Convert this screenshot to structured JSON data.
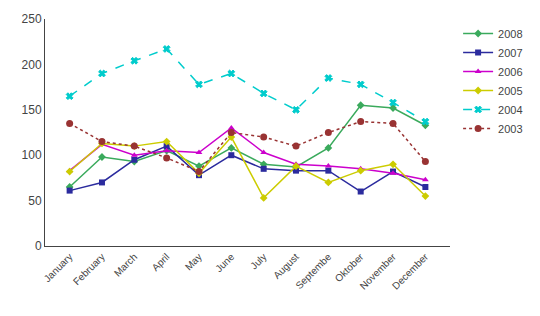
{
  "chart_data": {
    "type": "line",
    "categories": [
      "January",
      "February",
      "March",
      "April",
      "May",
      "June",
      "July",
      "August",
      "Septembe",
      "Oktober",
      "November",
      "December"
    ],
    "series": [
      {
        "name": "2008",
        "color": "#3aaa5c",
        "marker": "diamond",
        "line_style": "solid",
        "values": [
          65,
          98,
          93,
          105,
          88,
          108,
          90,
          87,
          108,
          155,
          152,
          133
        ]
      },
      {
        "name": "2007",
        "color": "#2b2b9e",
        "marker": "square",
        "line_style": "solid",
        "values": [
          61,
          70,
          95,
          110,
          78,
          100,
          85,
          83,
          83,
          60,
          82,
          65
        ]
      },
      {
        "name": "2006",
        "color": "#cc00cc",
        "marker": "triangle",
        "line_style": "solid",
        "values": [
          83,
          112,
          100,
          105,
          103,
          130,
          103,
          90,
          88,
          85,
          80,
          73
        ]
      },
      {
        "name": "2005",
        "color": "#cccc00",
        "marker": "diamond",
        "line_style": "solid",
        "values": [
          82,
          113,
          110,
          115,
          80,
          120,
          53,
          88,
          70,
          83,
          90,
          55
        ]
      },
      {
        "name": "2004",
        "color": "#00cccc",
        "marker": "x",
        "line_style": "dashed",
        "values": [
          165,
          190,
          204,
          217,
          178,
          190,
          168,
          150,
          185,
          178,
          158,
          137
        ]
      },
      {
        "name": "2003",
        "color": "#993333",
        "marker": "circle",
        "line_style": "dotted",
        "values": [
          135,
          115,
          110,
          97,
          82,
          125,
          120,
          110,
          125,
          137,
          135,
          93
        ]
      }
    ],
    "ylim": [
      0,
      250
    ],
    "yticks": [
      0,
      50,
      100,
      150,
      200,
      250
    ],
    "grid": false,
    "legend": "right"
  }
}
